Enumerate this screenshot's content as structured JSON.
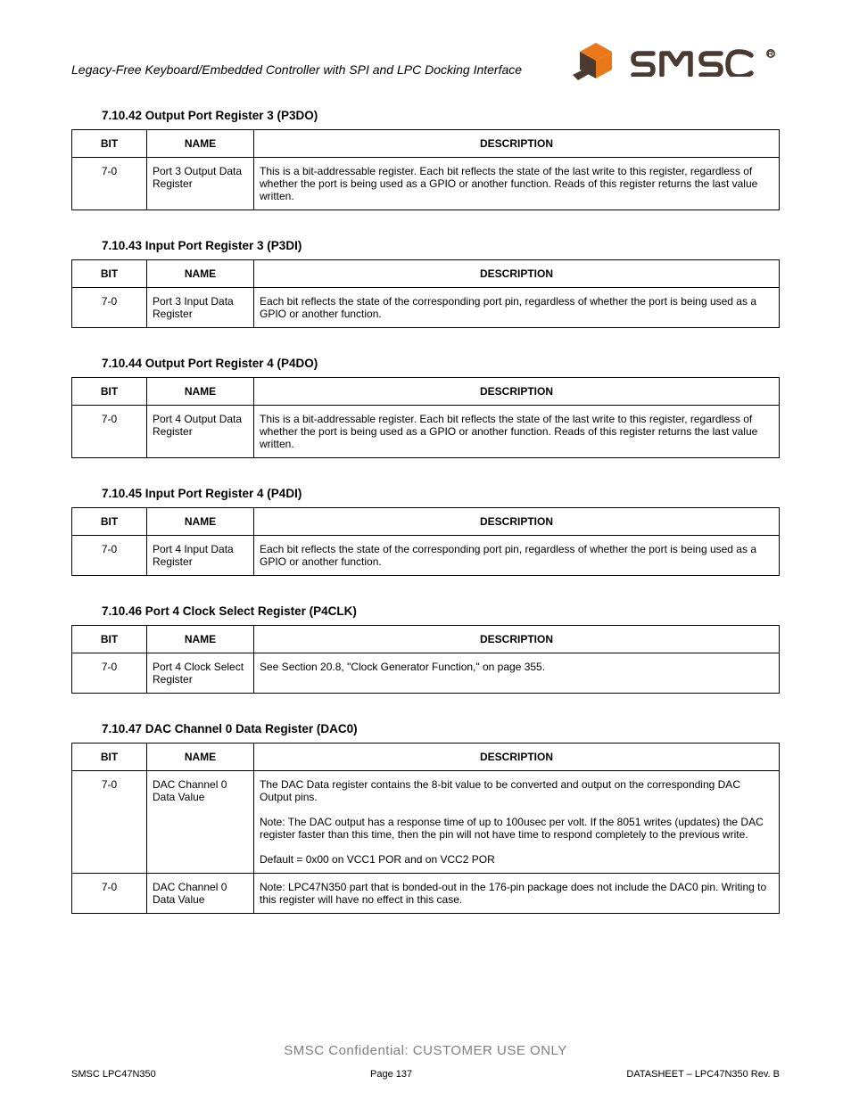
{
  "doc": {
    "header_left": "Legacy-Free Keyboard/Embedded Controller with SPI and LPC Docking Interface",
    "logo_text": "smsc",
    "confidential": "SMSC Confidential: CUSTOMER USE ONLY",
    "footer_left": "SMSC LPC47N350",
    "footer_mid": "Page 137",
    "footer_right": "DATASHEET – LPC47N350 Rev. B"
  },
  "columns": [
    "BIT",
    "NAME",
    "DESCRIPTION"
  ],
  "sections": [
    {
      "title": "7.10.42  Output Port Register 3 (P3DO)",
      "rows": [
        {
          "bit": "7-0",
          "name": "Port 3 Output Data Register",
          "desc": "This is a bit-addressable register. Each bit reflects the state of the last write to this register, regardless of whether the port is being used as a GPIO or another function. Reads of this register returns the last value written."
        }
      ]
    },
    {
      "title": "7.10.43  Input Port Register 3 (P3DI)",
      "rows": [
        {
          "bit": "7-0",
          "name": "Port 3 Input Data Register",
          "desc": "Each bit reflects the state of the corresponding port pin, regardless of whether the port is being used as a GPIO or another function."
        }
      ]
    },
    {
      "title": "7.10.44  Output Port Register 4 (P4DO)",
      "rows": [
        {
          "bit": "7-0",
          "name": "Port 4 Output Data Register",
          "desc": "This is a bit-addressable register. Each bit reflects the state of the last write to this register, regardless of whether the port is being used as a GPIO or another function. Reads of this register returns the last value written."
        }
      ]
    },
    {
      "title": "7.10.45  Input Port Register 4 (P4DI)",
      "rows": [
        {
          "bit": "7-0",
          "name": "Port 4 Input Data Register",
          "desc": "Each bit reflects the state of the corresponding port pin, regardless of whether the port is being used as a GPIO or another function."
        }
      ]
    },
    {
      "title": "7.10.46  Port 4 Clock Select Register (P4CLK)",
      "rows": [
        {
          "bit": "7-0",
          "name": "Port 4 Clock Select Register",
          "desc": "See Section 20.8, \"Clock Generator Function,\" on page 355."
        }
      ]
    },
    {
      "title": "7.10.47  DAC Channel 0 Data Register (DAC0)",
      "rows": [
        {
          "bit": "7-0",
          "name": "DAC Channel 0 Data Value",
          "desc": "The DAC Data register contains the 8-bit value to be converted and output on the corresponding DAC Output pins.\n\nNote:  The DAC output has a response time of up to 100usec per volt. If the 8051 writes (updates) the DAC register faster than this time, then the pin will not have time to respond completely to the previous write.\n\nDefault = 0x00 on VCC1 POR and on VCC2 POR"
        },
        {
          "bit": "7-0",
          "name": "DAC Channel 0 Data Value",
          "desc": "Note:  LPC47N350 part that is bonded-out in the 176-pin package does not include the DAC0 pin. Writing to this register will have no effect in this case."
        }
      ]
    }
  ]
}
